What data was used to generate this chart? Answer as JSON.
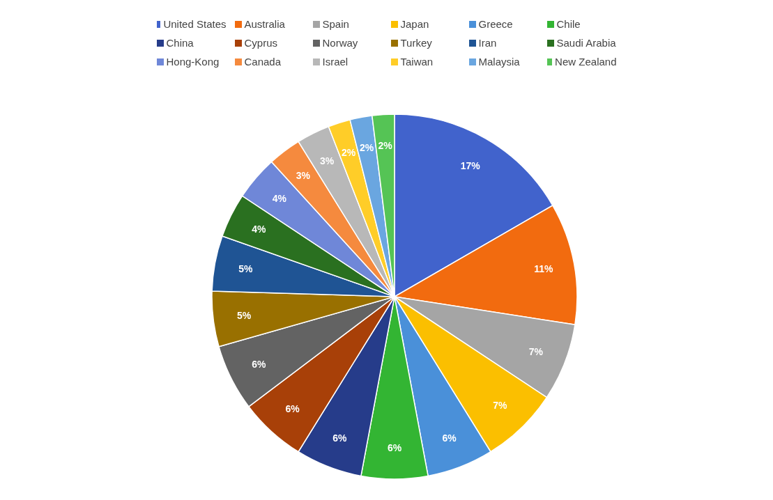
{
  "chart_data": {
    "type": "pie",
    "legend": "top",
    "categories": [
      "United States",
      "Australia",
      "Spain",
      "Japan",
      "Greece",
      "Chile",
      "China",
      "Cyprus",
      "Norway",
      "Turkey",
      "Iran",
      "Saudi Arabia",
      "Hong-Kong",
      "Canada",
      "Israel",
      "Taiwan",
      "Malaysia",
      "New Zealand"
    ],
    "values": [
      17,
      11,
      7,
      7,
      6,
      6,
      6,
      6,
      6,
      5,
      5,
      4,
      4,
      3,
      3,
      2,
      2,
      2
    ],
    "value_labels": [
      "17%",
      "11%",
      "7%",
      "7%",
      "6%",
      "6%",
      "6%",
      "6%",
      "6%",
      "5%",
      "5%",
      "4%",
      "4%",
      "3%",
      "3%",
      "2%",
      "2%",
      "2%"
    ],
    "colors": [
      "#4163cc",
      "#f26b0f",
      "#a5a5a5",
      "#fbbf00",
      "#4a90d9",
      "#33b533",
      "#263c8a",
      "#a84008",
      "#636363",
      "#997000",
      "#1f5494",
      "#2a7020",
      "#6f87d8",
      "#f58a3e",
      "#b8b8b8",
      "#ffcd28",
      "#6aa6e0",
      "#55c455"
    ]
  }
}
